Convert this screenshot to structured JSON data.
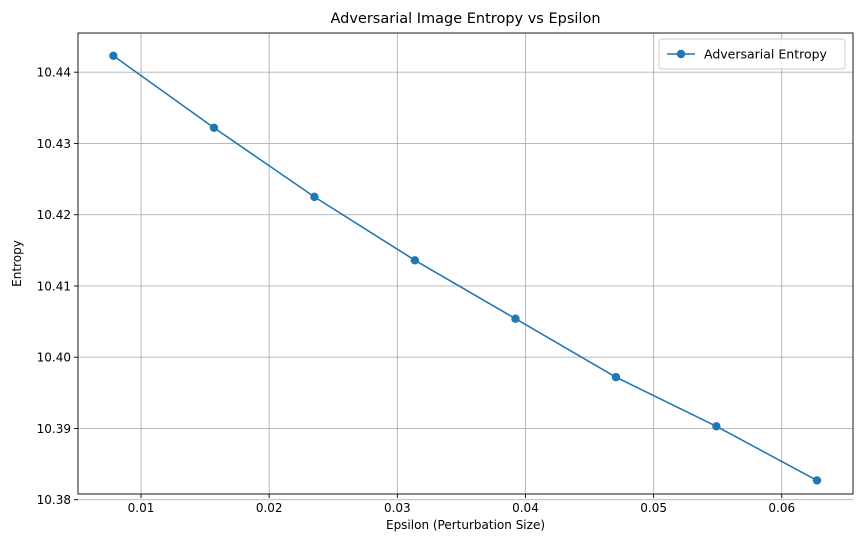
{
  "chart_data": {
    "type": "line",
    "title": "Adversarial Image Entropy vs Epsilon",
    "xlabel": "Epsilon (Perturbation Size)",
    "ylabel": "Entropy",
    "xlim": [
      0.00508,
      0.06556
    ],
    "ylim": [
      10.3808,
      10.4455
    ],
    "xticks": [
      0.01,
      0.02,
      0.03,
      0.04,
      0.05,
      0.06
    ],
    "xtick_labels": [
      "0.01",
      "0.02",
      "0.03",
      "0.04",
      "0.05",
      "0.06"
    ],
    "yticks": [
      10.38,
      10.39,
      10.4,
      10.41,
      10.42,
      10.43,
      10.44
    ],
    "ytick_labels": [
      "10.38",
      "10.39",
      "10.40",
      "10.41",
      "10.42",
      "10.43",
      "10.44"
    ],
    "grid": true,
    "legend_position": "top-right",
    "series": [
      {
        "name": "Adversarial Entropy",
        "color": "#1f77b4",
        "marker": "circle",
        "x": [
          0.00784,
          0.01569,
          0.02353,
          0.03137,
          0.03922,
          0.04706,
          0.0549,
          0.06275
        ],
        "y": [
          10.4423,
          10.4322,
          10.4225,
          10.4136,
          10.4054,
          10.3972,
          10.3903,
          10.3827
        ]
      }
    ]
  }
}
